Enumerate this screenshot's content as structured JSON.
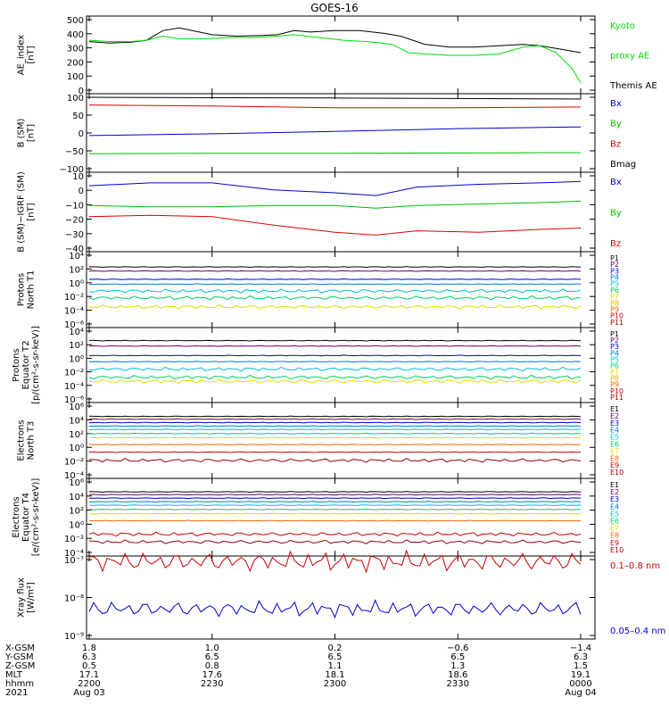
{
  "title": "GOES-16",
  "panels": [
    {
      "ylabel": [
        "AE_index",
        "[nT]"
      ],
      "yticks": [
        "500",
        "400",
        "300",
        "200",
        "100",
        "0"
      ],
      "legend": [
        {
          "text": "Kyoto",
          "color": "#00dd00"
        },
        {
          "text": "proxy AE",
          "color": "#00dd00"
        },
        {
          "text": "Themis AE",
          "color": "#000000"
        }
      ]
    },
    {
      "ylabel": [
        "B (SM)",
        "[nT]"
      ],
      "yticks": [
        "100",
        "50",
        "0",
        "−50",
        "−100"
      ],
      "legend": [
        {
          "text": "Bx",
          "color": "#0000cc"
        },
        {
          "text": "By",
          "color": "#00bb00"
        },
        {
          "text": "Bz",
          "color": "#dd0000"
        },
        {
          "text": "Bmag",
          "color": "#000000"
        }
      ]
    },
    {
      "ylabel": [
        "B (SM)−IGRF (SM)",
        "[nT]"
      ],
      "yticks": [
        "10",
        "0",
        "−10",
        "−20",
        "−30",
        "−40"
      ],
      "legend": [
        {
          "text": "Bx",
          "color": "#0000cc"
        },
        {
          "text": "By",
          "color": "#00bb00"
        },
        {
          "text": "Bz",
          "color": "#dd0000"
        }
      ]
    },
    {
      "ylabel": [
        "Protons",
        "North T1"
      ],
      "yticks": [
        "10⁴",
        "10²",
        "10⁰",
        "10⁻²",
        "10⁻⁴",
        "10⁻⁶"
      ],
      "legend": [
        {
          "text": "P1",
          "color": "#000000"
        },
        {
          "text": "P2",
          "color": "#660066"
        },
        {
          "text": "P3",
          "color": "#0000cc"
        },
        {
          "text": "P4",
          "color": "#0077dd"
        },
        {
          "text": "P5",
          "color": "#00bbdd"
        },
        {
          "text": "P6",
          "color": "#00cc66"
        },
        {
          "text": "P7",
          "color": "#dddd00"
        },
        {
          "text": "P8",
          "color": "#ffaa00"
        },
        {
          "text": "P9",
          "color": "#ee6600"
        },
        {
          "text": "P10",
          "color": "#cc0000"
        },
        {
          "text": "P11",
          "color": "#990000"
        }
      ]
    },
    {
      "ylabel": [
        "Protons",
        "Equator T2",
        "[p/(cm²-s-sr-keV)]"
      ],
      "yticks": [
        "10⁴",
        "10²",
        "10⁰",
        "10⁻²",
        "10⁻⁴",
        "10⁻⁶"
      ],
      "legend": [
        {
          "text": "P1",
          "color": "#000000"
        },
        {
          "text": "P2",
          "color": "#660066"
        },
        {
          "text": "P3",
          "color": "#0000cc"
        },
        {
          "text": "P4",
          "color": "#0077dd"
        },
        {
          "text": "P5",
          "color": "#00bbdd"
        },
        {
          "text": "P6",
          "color": "#00cc66"
        },
        {
          "text": "P7",
          "color": "#dddd00"
        },
        {
          "text": "P8",
          "color": "#ffaa00"
        },
        {
          "text": "P9",
          "color": "#ee6600"
        },
        {
          "text": "P10",
          "color": "#cc0000"
        },
        {
          "text": "P11",
          "color": "#990000"
        }
      ]
    },
    {
      "ylabel": [
        "Electrons",
        "North T3"
      ],
      "yticks": [
        "10⁶",
        "10⁴",
        "10²",
        "10⁰",
        "10⁻²",
        "10⁻⁴"
      ],
      "legend": [
        {
          "text": "E1",
          "color": "#000000"
        },
        {
          "text": "E2",
          "color": "#660066"
        },
        {
          "text": "E3",
          "color": "#0000cc"
        },
        {
          "text": "E4",
          "color": "#0077dd"
        },
        {
          "text": "E5",
          "color": "#00bbdd"
        },
        {
          "text": "E6",
          "color": "#00cc66"
        },
        {
          "text": "E7",
          "color": "#dddd00"
        },
        {
          "text": "E8",
          "color": "#ee6600"
        },
        {
          "text": "E9",
          "color": "#cc0000"
        },
        {
          "text": "E10",
          "color": "#990000"
        }
      ]
    },
    {
      "ylabel": [
        "Electrons",
        "Equator T4",
        "[e/(cm²-s-sr-keV)]"
      ],
      "yticks": [
        "10⁶",
        "10⁴",
        "10²",
        "10⁰",
        "10⁻²",
        "10⁻⁴"
      ],
      "legend": [
        {
          "text": "E1",
          "color": "#000000"
        },
        {
          "text": "E2",
          "color": "#660066"
        },
        {
          "text": "E3",
          "color": "#0000cc"
        },
        {
          "text": "E4",
          "color": "#0077dd"
        },
        {
          "text": "E5",
          "color": "#00bbdd"
        },
        {
          "text": "E6",
          "color": "#00cc66"
        },
        {
          "text": "E7",
          "color": "#dddd00"
        },
        {
          "text": "E8",
          "color": "#ee6600"
        },
        {
          "text": "E9",
          "color": "#cc0000"
        },
        {
          "text": "E10",
          "color": "#990000"
        }
      ]
    },
    {
      "ylabel": [
        "Xray flux",
        "[W/m²]"
      ],
      "yticks": [
        "10⁻⁷",
        "10⁻⁸",
        "10⁻⁹"
      ],
      "legend": [
        {
          "text": "0.1–0.8 nm",
          "color": "#cc0000"
        },
        {
          "text": "0.05–0.4 nm",
          "color": "#0000cc"
        }
      ]
    }
  ],
  "footer": {
    "row_labels": [
      "X-GSM",
      "Y-GSM",
      "Z-GSM",
      "MLT",
      "hhmm",
      "2021"
    ],
    "columns": [
      [
        "1.8",
        "6.3",
        "0.5",
        "17.1",
        "2200",
        "Aug 03"
      ],
      [
        "1.0",
        "6.5",
        "0.8",
        "17.6",
        "2230",
        ""
      ],
      [
        "0.2",
        "6.5",
        "1.1",
        "18.1",
        "2300",
        ""
      ],
      [
        "−0.6",
        "6.5",
        "1.3",
        "18.6",
        "2330",
        ""
      ],
      [
        "−1.4",
        "6.3",
        "1.5",
        "19.1",
        "0000",
        "Aug 04"
      ]
    ]
  },
  "chart_data": {
    "type": "line",
    "title": "GOES-16",
    "x_time_range": [
      "2021-08-03 22:00",
      "2021-08-04 00:00"
    ],
    "x_ticks": [
      "2200",
      "2230",
      "2300",
      "2330",
      "0000"
    ],
    "panels": [
      {
        "ylabel": "AE_index [nT]",
        "ylim": [
          0,
          500
        ],
        "scale": "linear",
        "series": [
          {
            "name": "Themis AE",
            "color": "#000000",
            "x": [
              "22:00",
              "22:05",
              "22:10",
              "22:14",
              "22:18",
              "22:22",
              "22:30",
              "22:36",
              "22:42",
              "22:46",
              "22:50",
              "22:54",
              "23:00",
              "23:06",
              "23:12",
              "23:16",
              "23:22",
              "23:28",
              "23:34",
              "23:40",
              "23:46",
              "23:50",
              "23:54",
              "23:58",
              "00:00"
            ],
            "y": [
              340,
              330,
              335,
              350,
              420,
              440,
              390,
              380,
              385,
              390,
              420,
              410,
              420,
              420,
              400,
              380,
              320,
              300,
              300,
              310,
              320,
              310,
              290,
              270,
              260
            ]
          },
          {
            "name": "Kyoto proxy AE",
            "color": "#00dd00",
            "x": [
              "22:00",
              "22:05",
              "22:10",
              "22:14",
              "22:18",
              "22:22",
              "22:28",
              "22:34",
              "22:40",
              "22:46",
              "22:50",
              "22:56",
              "23:02",
              "23:08",
              "23:14",
              "23:18",
              "23:22",
              "23:28",
              "23:34",
              "23:40",
              "23:46",
              "23:50",
              "23:54",
              "23:58",
              "00:00"
            ],
            "y": [
              350,
              340,
              340,
              350,
              380,
              360,
              360,
              370,
              370,
              380,
              390,
              370,
              350,
              340,
              320,
              260,
              250,
              240,
              240,
              250,
              300,
              310,
              260,
              140,
              40
            ]
          }
        ]
      },
      {
        "ylabel": "B (SM) [nT]",
        "ylim": [
          -100,
          100
        ],
        "scale": "linear",
        "series": [
          {
            "name": "Bmag",
            "color": "#000000",
            "x": [
              "22:00",
              "23:00",
              "00:00"
            ],
            "y": [
              100,
              98,
              95
            ]
          },
          {
            "name": "Bz",
            "color": "#dd0000",
            "x": [
              "22:00",
              "22:30",
              "23:00",
              "23:30",
              "00:00"
            ],
            "y": [
              78,
              75,
              70,
              70,
              72
            ]
          },
          {
            "name": "Bx",
            "color": "#0000cc",
            "x": [
              "22:00",
              "22:30",
              "23:00",
              "23:30",
              "00:00"
            ],
            "y": [
              -10,
              -5,
              2,
              10,
              15
            ]
          },
          {
            "name": "By",
            "color": "#00bb00",
            "x": [
              "22:00",
              "22:30",
              "23:00",
              "23:30",
              "00:00"
            ],
            "y": [
              -62,
              -61,
              -61,
              -60,
              -59
            ]
          }
        ]
      },
      {
        "ylabel": "B (SM)−IGRF (SM) [nT]",
        "ylim": [
          -40,
          10
        ],
        "scale": "linear",
        "series": [
          {
            "name": "Bx",
            "color": "#0000cc",
            "x": [
              "22:00",
              "22:15",
              "22:30",
              "22:45",
              "23:00",
              "23:10",
              "23:20",
              "23:35",
              "23:50",
              "00:00"
            ],
            "y": [
              3,
              5,
              5,
              0,
              -2,
              -4,
              2,
              4,
              5,
              6
            ]
          },
          {
            "name": "By",
            "color": "#00bb00",
            "x": [
              "22:00",
              "22:15",
              "22:30",
              "22:45",
              "23:00",
              "23:10",
              "23:20",
              "23:35",
              "23:50",
              "00:00"
            ],
            "y": [
              -11,
              -12,
              -12,
              -11,
              -11,
              -13,
              -11,
              -10,
              -9,
              -8
            ]
          },
          {
            "name": "Bz",
            "color": "#dd0000",
            "x": [
              "22:00",
              "22:15",
              "22:30",
              "22:45",
              "23:00",
              "23:10",
              "23:20",
              "23:35",
              "23:50",
              "00:00"
            ],
            "y": [
              -19,
              -18,
              -19,
              -25,
              -30,
              -32,
              -29,
              -30,
              -28,
              -27
            ]
          }
        ]
      },
      {
        "ylabel": "Protons North T1",
        "ylim_log10": [
          -6,
          4
        ],
        "scale": "log",
        "series": [
          {
            "name": "P1",
            "color": "#000000",
            "log10": 2.3
          },
          {
            "name": "P2",
            "color": "#660066",
            "log10": 1.7
          },
          {
            "name": "P3",
            "color": "#0000cc",
            "log10": 0.5
          },
          {
            "name": "P4",
            "color": "#0077dd",
            "log10": -0.2
          },
          {
            "name": "P5",
            "color": "#00bbdd",
            "log10": -1.2
          },
          {
            "name": "P6",
            "color": "#00cc66",
            "log10": -2.2
          },
          {
            "name": "P7",
            "color": "#dddd00",
            "log10": -3.5
          }
        ]
      },
      {
        "ylabel": "Protons Equator T2 [p/(cm²-s-sr-keV)]",
        "ylim_log10": [
          -6,
          4
        ],
        "scale": "log",
        "series": [
          {
            "name": "P1",
            "color": "#000000",
            "log10": 2.6
          },
          {
            "name": "P2",
            "color": "#660066",
            "log10": 1.8
          },
          {
            "name": "P3",
            "color": "#0000cc",
            "log10": 0.4
          },
          {
            "name": "P4",
            "color": "#0077dd",
            "log10": -0.5
          },
          {
            "name": "P5",
            "color": "#00bbdd",
            "log10": -1.6
          },
          {
            "name": "P6",
            "color": "#00cc66",
            "log10": -2.8
          },
          {
            "name": "P7",
            "color": "#dddd00",
            "log10": -3.4
          }
        ]
      },
      {
        "ylabel": "Electrons North T3",
        "ylim_log10": [
          -4,
          6
        ],
        "scale": "log",
        "series": [
          {
            "name": "E1",
            "color": "#000000",
            "log10": 4.5
          },
          {
            "name": "E2",
            "color": "#660066",
            "log10": 4.1
          },
          {
            "name": "E3",
            "color": "#0000cc",
            "log10": 3.6
          },
          {
            "name": "E4",
            "color": "#0077dd",
            "log10": 3.1
          },
          {
            "name": "E5",
            "color": "#00bbdd",
            "log10": 2.6
          },
          {
            "name": "E6",
            "color": "#00cc66",
            "log10": 2.0
          },
          {
            "name": "E7",
            "color": "#dddd00",
            "log10": 1.4
          },
          {
            "name": "E8",
            "color": "#ee6600",
            "log10": 0.4
          },
          {
            "name": "E9",
            "color": "#cc0000",
            "log10": -0.7
          },
          {
            "name": "E10",
            "color": "#990000",
            "log10": -1.9
          }
        ]
      },
      {
        "ylabel": "Electrons Equator T4 [e/(cm²-s-sr-keV)]",
        "ylim_log10": [
          -4,
          6
        ],
        "scale": "log",
        "series": [
          {
            "name": "E1",
            "color": "#000000",
            "log10": 4.6
          },
          {
            "name": "E2",
            "color": "#660066",
            "log10": 4.2
          },
          {
            "name": "E3",
            "color": "#0000cc",
            "log10": 3.7
          },
          {
            "name": "E4",
            "color": "#0077dd",
            "log10": 3.2
          },
          {
            "name": "E5",
            "color": "#00bbdd",
            "log10": 2.7
          },
          {
            "name": "E6",
            "color": "#00cc66",
            "log10": 2.1
          },
          {
            "name": "E7",
            "color": "#dddd00",
            "log10": 1.5
          },
          {
            "name": "E8",
            "color": "#ee6600",
            "log10": 0.5
          },
          {
            "name": "E9",
            "color": "#cc0000",
            "log10": -1.4
          },
          {
            "name": "E10",
            "color": "#990000",
            "log10": -2.5
          }
        ]
      },
      {
        "ylabel": "Xray flux [W/m²]",
        "ylim_log10": [
          -9,
          -7
        ],
        "scale": "log",
        "series": [
          {
            "name": "0.1–0.8 nm",
            "color": "#cc0000",
            "log10": -7.05
          },
          {
            "name": "0.05–0.4 nm",
            "color": "#0000cc",
            "log10": -8.3
          }
        ]
      }
    ]
  }
}
